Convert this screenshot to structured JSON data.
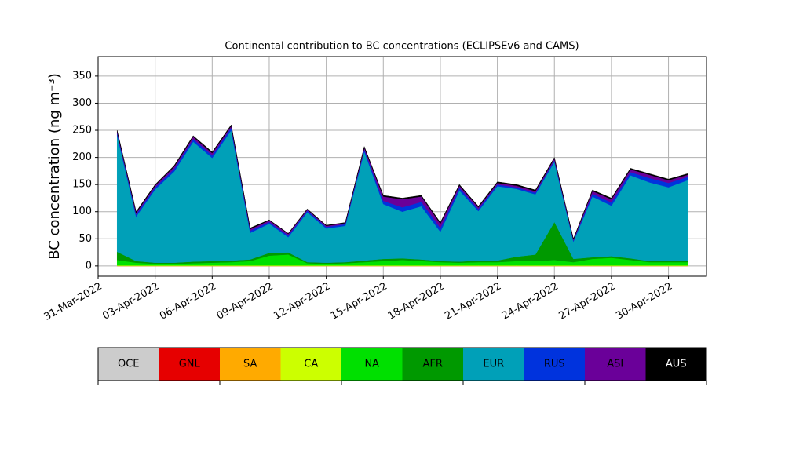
{
  "chart_data": {
    "type": "stacked_area",
    "title": "Continental contribution to BC concentrations (ECLIPSEv6 and CAMS)",
    "y_label": "BC concentration (ng m⁻³)",
    "x": [
      "2022-04-01",
      "2022-04-02",
      "2022-04-03",
      "2022-04-04",
      "2022-04-05",
      "2022-04-06",
      "2022-04-07",
      "2022-04-08",
      "2022-04-09",
      "2022-04-10",
      "2022-04-11",
      "2022-04-12",
      "2022-04-13",
      "2022-04-14",
      "2022-04-15",
      "2022-04-16",
      "2022-04-17",
      "2022-04-18",
      "2022-04-19",
      "2022-04-20",
      "2022-04-21",
      "2022-04-22",
      "2022-04-23",
      "2022-04-24",
      "2022-04-25",
      "2022-04-26",
      "2022-04-27",
      "2022-04-28",
      "2022-04-29",
      "2022-04-30",
      "2022-05-01"
    ],
    "xlim": [
      "2022-03-31",
      "2022-05-02"
    ],
    "xticks": [
      {
        "value": "2022-03-31",
        "label": "31-Mar-2022"
      },
      {
        "value": "2022-04-03",
        "label": "03-Apr-2022"
      },
      {
        "value": "2022-04-06",
        "label": "06-Apr-2022"
      },
      {
        "value": "2022-04-09",
        "label": "09-Apr-2022"
      },
      {
        "value": "2022-04-12",
        "label": "12-Apr-2022"
      },
      {
        "value": "2022-04-15",
        "label": "15-Apr-2022"
      },
      {
        "value": "2022-04-18",
        "label": "18-Apr-2022"
      },
      {
        "value": "2022-04-21",
        "label": "21-Apr-2022"
      },
      {
        "value": "2022-04-24",
        "label": "24-Apr-2022"
      },
      {
        "value": "2022-04-27",
        "label": "27-Apr-2022"
      },
      {
        "value": "2022-04-30",
        "label": "30-Apr-2022"
      }
    ],
    "ylim": [
      -19,
      386
    ],
    "yticks": [
      0,
      50,
      100,
      150,
      200,
      250,
      300,
      350
    ],
    "grid": true,
    "series": [
      {
        "name": "OCE",
        "color": "#cccccc",
        "values": [
          0,
          0,
          0,
          0,
          0,
          0,
          0,
          0,
          0,
          0,
          0,
          0,
          0,
          0,
          0,
          0,
          0,
          0,
          0,
          0,
          0,
          0,
          0,
          0,
          0,
          0,
          0,
          0,
          0,
          0,
          0
        ]
      },
      {
        "name": "GNL",
        "color": "#e60000",
        "values": [
          0,
          0,
          0,
          0,
          0,
          0,
          0,
          0,
          0,
          0,
          0,
          0,
          0,
          0,
          0,
          0,
          0,
          0,
          0,
          0,
          0,
          0,
          0,
          0,
          0,
          0,
          0,
          0,
          0,
          0,
          0
        ]
      },
      {
        "name": "SA",
        "color": "#ffaa00",
        "values": [
          0,
          0,
          0,
          0,
          0,
          0,
          0,
          0,
          0,
          0,
          0,
          0,
          0,
          0,
          0,
          0,
          0,
          0,
          0,
          0,
          0,
          0,
          0,
          0,
          0,
          0,
          0,
          0,
          0,
          0,
          0
        ]
      },
      {
        "name": "CA",
        "color": "#ccff00",
        "values": [
          1,
          1,
          1,
          1,
          1,
          1,
          1,
          1,
          1,
          1,
          1,
          1,
          1,
          1,
          1,
          1,
          1,
          1,
          1,
          1,
          1,
          1,
          1,
          1,
          1,
          1,
          1,
          1,
          1,
          1,
          1
        ]
      },
      {
        "name": "NA",
        "color": "#00e000",
        "values": [
          10,
          5,
          3,
          3,
          4,
          5,
          6,
          8,
          18,
          20,
          4,
          3,
          4,
          6,
          8,
          10,
          8,
          6,
          5,
          6,
          6,
          8,
          8,
          10,
          6,
          12,
          14,
          10,
          6,
          6,
          6
        ]
      },
      {
        "name": "AFR",
        "color": "#009900",
        "values": [
          15,
          3,
          2,
          2,
          3,
          3,
          3,
          3,
          5,
          4,
          2,
          2,
          2,
          3,
          4,
          3,
          3,
          2,
          2,
          3,
          3,
          8,
          12,
          70,
          6,
          3,
          3,
          3,
          2,
          2,
          2
        ]
      },
      {
        "name": "EUR",
        "color": "#00a0b8",
        "values": [
          215,
          82,
          135,
          168,
          221,
          190,
          240,
          49,
          54,
          28,
          92,
          63,
          67,
          201,
          101,
          86,
          98,
          54,
          131,
          91,
          137,
          125,
          111,
          111,
          32,
          112,
          93,
          153,
          145,
          136,
          149
        ]
      },
      {
        "name": "RUS",
        "color": "#0033dd",
        "values": [
          4,
          4,
          4,
          5,
          5,
          5,
          5,
          4,
          3,
          3,
          3,
          3,
          3,
          4,
          6,
          8,
          8,
          7,
          5,
          4,
          3,
          3,
          3,
          3,
          2,
          5,
          6,
          6,
          8,
          8,
          6
        ]
      },
      {
        "name": "ASI",
        "color": "#6a0099",
        "values": [
          3,
          3,
          3,
          4,
          4,
          4,
          3,
          3,
          3,
          3,
          2,
          2,
          2,
          3,
          8,
          15,
          10,
          8,
          4,
          3,
          3,
          3,
          3,
          3,
          2,
          5,
          6,
          5,
          6,
          5,
          4
        ]
      },
      {
        "name": "AUS",
        "color": "#000000",
        "values": [
          2,
          2,
          2,
          2,
          2,
          2,
          2,
          2,
          1,
          1,
          1,
          1,
          1,
          2,
          2,
          2,
          2,
          2,
          2,
          2,
          2,
          2,
          2,
          2,
          1,
          2,
          2,
          2,
          2,
          2,
          2
        ]
      }
    ]
  }
}
